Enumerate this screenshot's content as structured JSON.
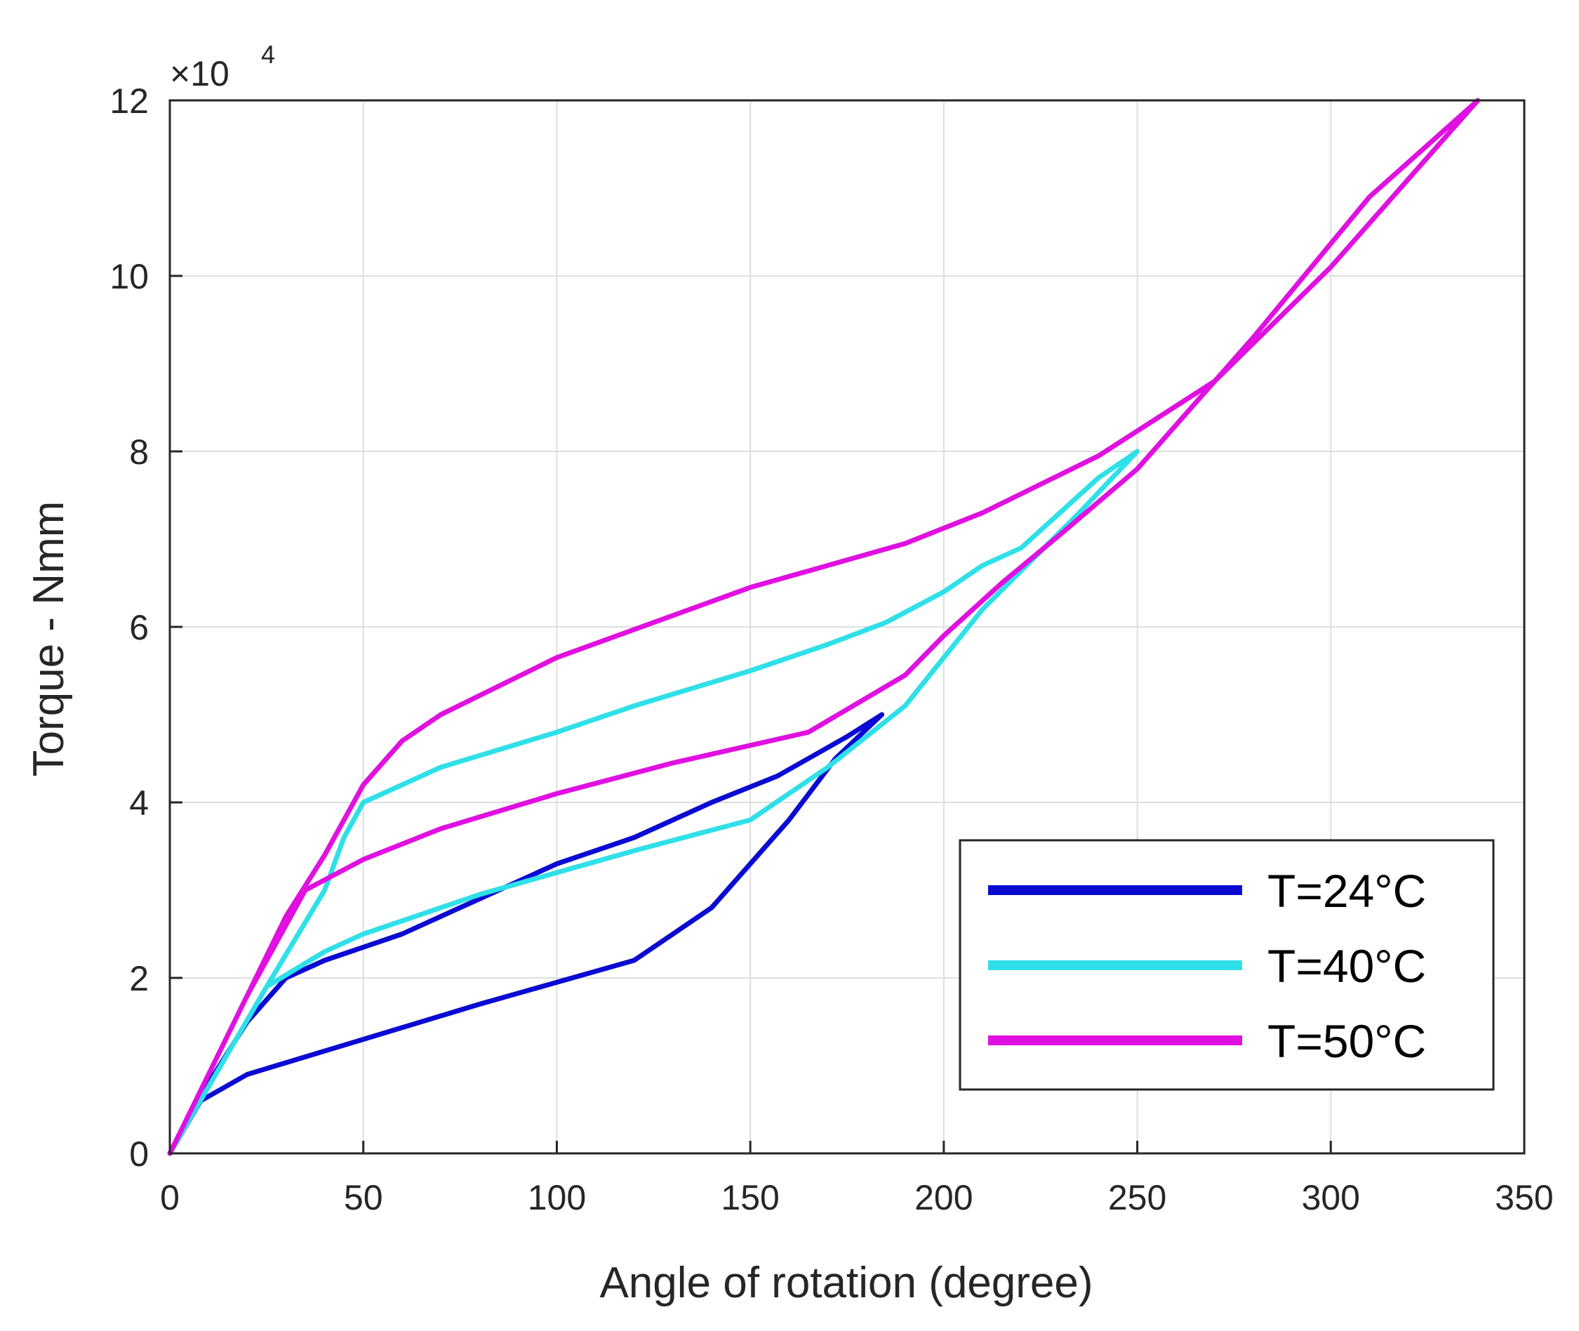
{
  "chart_data": {
    "type": "line",
    "title": "",
    "xlabel": "Angle of rotation (degree)",
    "ylabel": "Torque - Nmm",
    "y_multiplier_label": "×10",
    "y_multiplier_exponent": "4",
    "xlim": [
      0,
      350
    ],
    "ylim": [
      0,
      12
    ],
    "xticks": [
      0,
      50,
      100,
      150,
      200,
      250,
      300,
      350
    ],
    "yticks": [
      0,
      2,
      4,
      6,
      8,
      10,
      12
    ],
    "xtick_labels": [
      "0",
      "50",
      "100",
      "150",
      "200",
      "250",
      "300",
      "350"
    ],
    "ytick_labels": [
      "0",
      "2",
      "4",
      "6",
      "8",
      "10",
      "12"
    ],
    "grid": true,
    "legend_position": "lower-right",
    "series": [
      {
        "name": "T=24°C",
        "color": "#0a0ad2",
        "x": [
          0,
          8,
          20,
          50,
          80,
          100,
          120,
          140,
          160,
          172,
          184,
          175,
          165,
          157,
          140,
          120,
          100,
          80,
          60,
          50,
          40,
          30,
          20,
          10,
          0
        ],
        "y": [
          0,
          0.6,
          0.9,
          1.3,
          1.7,
          1.95,
          2.2,
          2.8,
          3.8,
          4.5,
          5.0,
          4.75,
          4.5,
          4.3,
          4.0,
          3.6,
          3.3,
          2.9,
          2.5,
          2.35,
          2.2,
          2.0,
          1.5,
          0.8,
          0
        ]
      },
      {
        "name": "T=40°C",
        "color": "#2fe0e8",
        "x": [
          0,
          25,
          40,
          50,
          60,
          80,
          100,
          120,
          150,
          170,
          190,
          210,
          235,
          250,
          240,
          220,
          210,
          200,
          185,
          170,
          150,
          120,
          100,
          70,
          50,
          45,
          40,
          25,
          0
        ],
        "y": [
          0,
          1.9,
          2.3,
          2.5,
          2.65,
          2.95,
          3.2,
          3.45,
          3.8,
          4.4,
          5.1,
          6.2,
          7.3,
          8.0,
          7.7,
          6.9,
          6.7,
          6.4,
          6.05,
          5.8,
          5.5,
          5.1,
          4.8,
          4.4,
          4.0,
          3.6,
          3.0,
          1.9,
          0
        ]
      },
      {
        "name": "T=50°C",
        "color": "#e010e0",
        "x": [
          0,
          20,
          35,
          50,
          70,
          100,
          130,
          165,
          190,
          200,
          215,
          230,
          250,
          280,
          310,
          338,
          300,
          270,
          240,
          210,
          190,
          150,
          100,
          70,
          60,
          50,
          40,
          30,
          20,
          0
        ],
        "y": [
          0,
          1.8,
          3.0,
          3.35,
          3.7,
          4.1,
          4.45,
          4.8,
          5.45,
          5.9,
          6.5,
          7.05,
          7.8,
          9.3,
          10.9,
          12.0,
          10.1,
          8.8,
          7.95,
          7.3,
          6.95,
          6.45,
          5.65,
          5.0,
          4.7,
          4.2,
          3.4,
          2.7,
          1.8,
          0
        ]
      }
    ]
  }
}
